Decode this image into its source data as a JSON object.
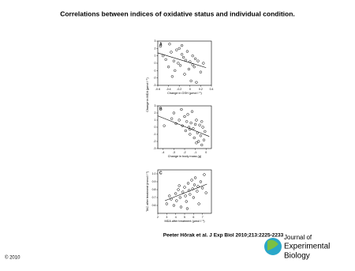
{
  "title": "Correlations between indices of oxidative status and individual condition.",
  "citation": "Peeter Hõrak et al. J Exp Biol 2010;213:2225-2233",
  "copyright": "© 2010",
  "logo": [
    "Journal of",
    "Experimental",
    "Biology"
  ],
  "chart_data": [
    {
      "type": "scatter",
      "panel": "A",
      "xlabel": "Change in GSH (µmol l⁻¹)",
      "ylabel": "Change in MDA (µmol l⁻¹)",
      "xlim": [
        -0.6,
        0.4
      ],
      "xticks": [
        -0.6,
        -0.4,
        -0.2,
        0,
        0.2,
        0.4
      ],
      "ylim": [
        -3,
        3
      ],
      "yticks": [
        -3,
        -2,
        -1,
        0,
        1,
        2,
        3
      ],
      "x": [
        -0.55,
        -0.5,
        -0.45,
        -0.4,
        -0.38,
        -0.35,
        -0.3,
        -0.28,
        -0.25,
        -0.22,
        -0.2,
        -0.18,
        -0.15,
        -0.12,
        -0.1,
        -0.08,
        -0.05,
        -0.02,
        0,
        0.02,
        0.05,
        0.08,
        0.1,
        0.12,
        0.15,
        0.2,
        0.25,
        -0.33,
        -0.15,
        0.05
      ],
      "y": [
        2.3,
        1.0,
        0.5,
        -0.5,
        2.6,
        1.5,
        0.3,
        -1.0,
        1.8,
        0.0,
        2.0,
        -0.3,
        1.2,
        0.8,
        -1.5,
        0.4,
        1.6,
        -0.8,
        0.2,
        -2.4,
        1.0,
        -0.5,
        0.6,
        -2.6,
        0.3,
        -1.2,
        0.0,
        -1.8,
        2.4,
        -0.2
      ],
      "trend": {
        "x": [
          -0.6,
          0.3
        ],
        "y": [
          1.4,
          -0.6
        ]
      }
    },
    {
      "type": "scatter",
      "panel": "B",
      "xlabel": "Change in body mass (g)",
      "xlim": [
        -4.5,
        0.5
      ],
      "xticks": [
        -4,
        -3,
        -2,
        -1,
        0
      ],
      "ylim": [
        -3,
        3
      ],
      "yticks": [
        -3,
        -2,
        -1,
        0,
        1,
        2,
        3
      ],
      "x": [
        -3.9,
        -3.2,
        -3.0,
        -2.8,
        -2.5,
        -2.3,
        -2.2,
        -2.0,
        -1.9,
        -1.8,
        -1.7,
        -1.6,
        -1.5,
        -1.4,
        -1.3,
        -1.2,
        -1.1,
        -1.0,
        -0.9,
        -0.8,
        -0.7,
        -0.6,
        -0.5,
        -0.4,
        -0.3,
        -0.2,
        -0.1,
        -1.5,
        -0.9,
        -0.4
      ],
      "y": [
        0.2,
        1.2,
        2.0,
        0.5,
        1.0,
        2.5,
        0.2,
        1.5,
        -0.5,
        0.8,
        1.8,
        0.0,
        -1.0,
        0.6,
        2.2,
        -0.2,
        -1.5,
        0.4,
        1.0,
        -0.8,
        -2.0,
        0.3,
        -1.2,
        -2.5,
        0.0,
        -1.8,
        -0.6,
        -0.3,
        -2.2,
        0.8
      ],
      "trend": {
        "x": [
          -4.5,
          0.3
        ],
        "y": [
          1.6,
          -1.3
        ]
      }
    },
    {
      "type": "scatter",
      "panel": "C",
      "xlabel": "MDA after treatment (µmol l⁻¹)",
      "ylabel": "TAC after treatment (mmol l⁻¹)",
      "xlim": [
        2,
        8
      ],
      "xticks": [
        2,
        3,
        4,
        5,
        6,
        7
      ],
      "ylim": [
        0.5,
        1.05
      ],
      "yticks": [
        0.6,
        0.7,
        0.8,
        0.9,
        {
          "value": 1,
          "label": "1.0"
        }
      ],
      "x": [
        3.0,
        3.3,
        3.5,
        3.8,
        4.0,
        4.1,
        4.3,
        4.5,
        4.6,
        4.8,
        5.0,
        5.1,
        5.2,
        5.4,
        5.5,
        5.6,
        5.8,
        5.9,
        6.0,
        6.1,
        6.2,
        6.4,
        6.5,
        6.6,
        6.8,
        7.0,
        7.2,
        7.4,
        4.4,
        5.3
      ],
      "y": [
        0.62,
        0.72,
        0.68,
        0.6,
        0.75,
        0.66,
        0.8,
        0.7,
        0.58,
        0.77,
        0.83,
        0.72,
        0.65,
        0.88,
        0.79,
        0.74,
        0.92,
        0.81,
        0.7,
        0.86,
        0.95,
        0.78,
        0.84,
        0.62,
        0.9,
        0.82,
        0.99,
        0.76,
        0.85,
        0.56
      ],
      "trend": {
        "x": [
          2.8,
          7.5
        ],
        "y": [
          0.66,
          0.87
        ]
      }
    }
  ]
}
